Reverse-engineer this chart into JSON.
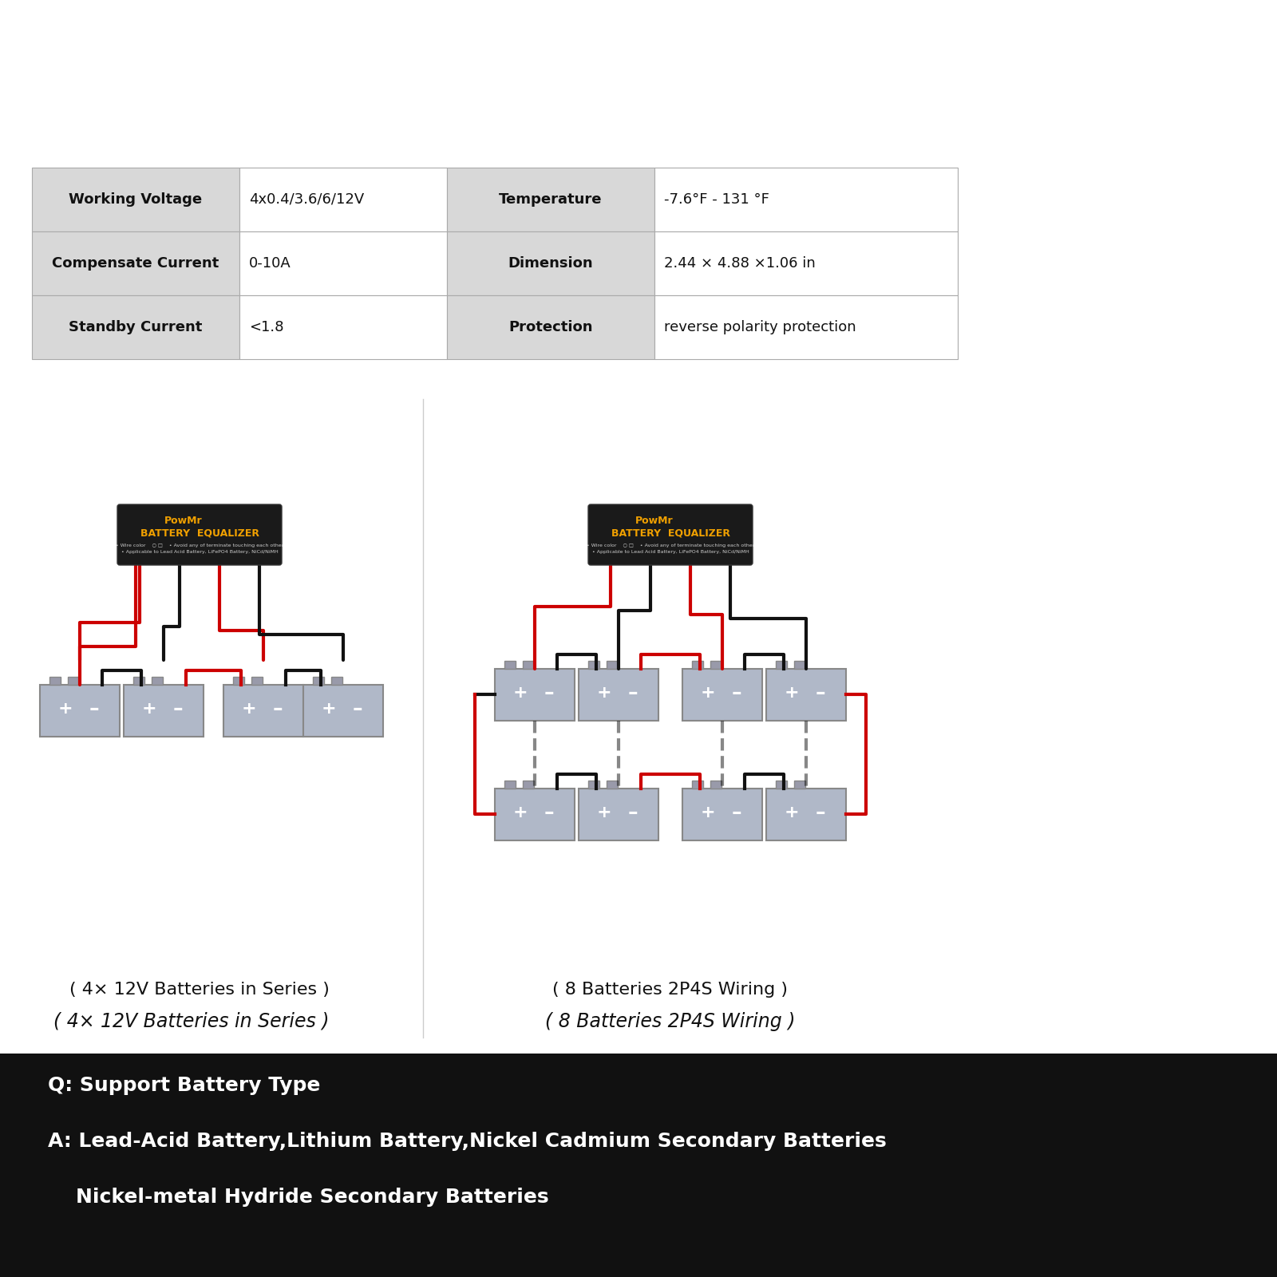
{
  "bg_color": "#ffffff",
  "table_bg": "#f0f0f0",
  "table_header_bg": "#d8d8d8",
  "table_rows": [
    [
      "Working Voltage",
      "4x0.4/3.6/6/12V",
      "Temperature",
      "-7.6°F - 131 °F"
    ],
    [
      "Compensate Current",
      "0-10A",
      "Dimension",
      "2.44 × 4.88 ×1.06 in"
    ],
    [
      "Standby Current",
      "<1.8",
      "Protection",
      "reverse polarity protection"
    ]
  ],
  "bottom_bg": "#111111",
  "bottom_text_color": "#ffffff",
  "bottom_line1": "Q: Support Battery Type",
  "bottom_line2": "A: Lead-Acid Battery,Lithium Battery,Nickel Cadmium Secondary Batteries",
  "bottom_line3": "    Nickel-metal Hydride Secondary Batteries",
  "caption_left": "( 4× 12V Batteries in Series )",
  "caption_right": "( 8 Batteries 2P4S Wiring )",
  "device_color": "#1a1a1a",
  "device_text_color": "#f0a000",
  "battery_color": "#b0b8c8",
  "battery_light": "#d0d8e0",
  "wire_red": "#cc0000",
  "wire_black": "#111111",
  "plus_color": "#ffffff",
  "minus_color": "#ffffff"
}
